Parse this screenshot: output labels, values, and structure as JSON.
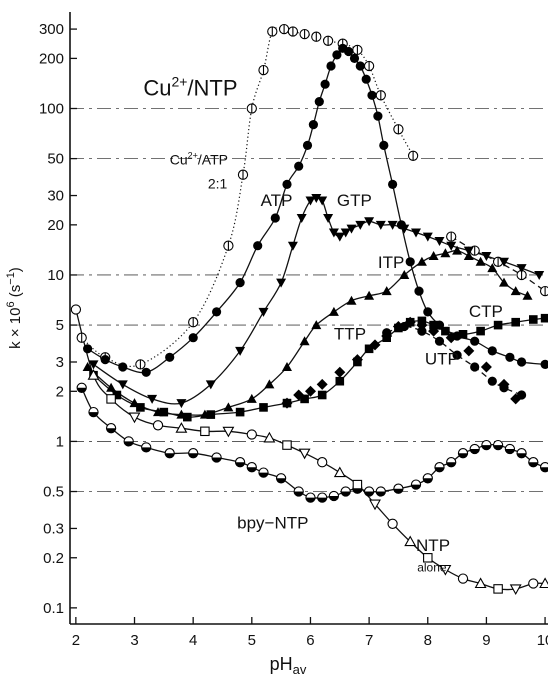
{
  "chart_data": {
    "type": "scatter",
    "xlabel": "pH",
    "xlabel_sub": "av",
    "ylabel": "k × 10",
    "ylabel_exp": "6",
    "ylabel_unit": " (s",
    "ylabel_unit_exp": "−1",
    "ylabel_close": ")",
    "x_scale": "linear",
    "y_scale": "log",
    "xlim": [
      1.9,
      10.05
    ],
    "ylim": [
      0.08,
      380
    ],
    "grid": "dashed horizontal lines at 0.5, 1, 5, 10, 50, 100",
    "x_ticks": [
      2,
      3,
      4,
      5,
      6,
      7,
      8,
      9,
      10
    ],
    "x_tick_labels": [
      "2",
      "3",
      "4",
      "5",
      "6",
      "7",
      "8",
      "9",
      "10"
    ],
    "y_ticks": [
      0.1,
      0.2,
      0.3,
      0.5,
      1,
      2,
      3,
      5,
      10,
      20,
      30,
      50,
      100,
      200,
      300
    ],
    "y_tick_labels": [
      "0.1",
      "0.2",
      "0.3",
      "0.5",
      "1",
      "2",
      "3",
      "5",
      "10",
      "20",
      "30",
      "50",
      "100",
      "200",
      "300"
    ],
    "annotations": [
      {
        "id": "title",
        "text": "Cu",
        "sup": "2+",
        "rest": "/NTP",
        "x": 3.15,
        "y": 120
      },
      {
        "id": "cuatp",
        "text": "Cu",
        "sup": "2+",
        "rest": "/ATP",
        "x": 3.6,
        "y": 46
      },
      {
        "id": "ratio",
        "text": "2:1",
        "x": 4.25,
        "y": 33
      },
      {
        "id": "atp",
        "text": "ATP",
        "x": 5.15,
        "y": 26
      },
      {
        "id": "gtp",
        "text": "GTP",
        "x": 6.45,
        "y": 26
      },
      {
        "id": "itp",
        "text": "ITP",
        "x": 7.15,
        "y": 11
      },
      {
        "id": "ctp",
        "text": "CTP",
        "x": 8.7,
        "y": 5.6
      },
      {
        "id": "ttp",
        "text": "TTP",
        "x": 6.4,
        "y": 4.1
      },
      {
        "id": "utp",
        "text": "UTP",
        "x": 7.95,
        "y": 2.9
      },
      {
        "id": "bpy",
        "text": "bpy−NTP",
        "x": 4.75,
        "y": 0.3
      },
      {
        "id": "ntp",
        "text": "NTP",
        "x": 7.8,
        "y": 0.22
      },
      {
        "id": "alone",
        "text": "alone",
        "x": 7.82,
        "y": 0.165
      }
    ],
    "series": [
      {
        "id": "cu-atp-2to1",
        "marker": "circle-bar-open",
        "line": "dotted",
        "x": [
          2.1,
          2.5,
          3.1,
          4.0,
          4.6,
          4.85,
          5.0,
          5.2,
          5.35,
          5.55,
          5.7,
          5.9,
          6.1,
          6.3,
          6.55,
          6.8,
          7.0,
          7.2,
          7.5,
          7.75
        ],
        "y": [
          4.2,
          3.2,
          2.9,
          5.2,
          15,
          40,
          100,
          170,
          290,
          300,
          290,
          280,
          270,
          255,
          245,
          225,
          180,
          120,
          75,
          52
        ]
      },
      {
        "id": "cu-atp-2to1-tail",
        "marker": "circle-bar-open",
        "line": "dashed",
        "x": [
          8.4,
          8.8,
          9.2,
          9.6,
          10.0
        ],
        "y": [
          17,
          14,
          12,
          10,
          8
        ]
      },
      {
        "id": "atp",
        "marker": "circle-filled",
        "line": "solid",
        "x": [
          2.2,
          2.5,
          2.8,
          3.2,
          3.6,
          4.0,
          4.4,
          4.8,
          5.1,
          5.4,
          5.6,
          5.8,
          5.95,
          6.05,
          6.15,
          6.25,
          6.35,
          6.45,
          6.55,
          6.65,
          6.75,
          6.85,
          6.95,
          7.05,
          7.15,
          7.25,
          7.4,
          7.55,
          7.7,
          7.85,
          8.0,
          8.2,
          8.5,
          8.8,
          9.1,
          9.4,
          9.6,
          10.0
        ],
        "y": [
          3.6,
          3.1,
          2.8,
          2.6,
          3.2,
          4.2,
          6,
          9,
          15,
          22,
          35,
          45,
          60,
          80,
          110,
          140,
          180,
          210,
          230,
          220,
          200,
          180,
          150,
          120,
          90,
          60,
          35,
          20,
          12,
          8,
          6,
          5,
          4.3,
          4,
          3.5,
          3.2,
          3.0,
          2.9
        ]
      },
      {
        "id": "gtp",
        "marker": "triangle-down-filled",
        "line": "solid",
        "x": [
          2.3,
          2.8,
          3.3,
          3.8,
          4.3,
          4.8,
          5.2,
          5.5,
          5.7,
          5.85,
          6.0,
          6.1,
          6.2,
          6.3,
          6.4,
          6.5,
          6.6,
          6.7,
          6.85,
          7.0,
          7.2,
          7.4,
          7.6,
          7.8,
          8.0,
          8.2,
          8.4,
          8.7,
          9.0,
          9.3,
          9.6,
          9.9
        ],
        "y": [
          2.9,
          2.2,
          1.8,
          1.7,
          2.2,
          3.5,
          6,
          9,
          15,
          22,
          28,
          29,
          28,
          22,
          18,
          17,
          18,
          19,
          20,
          21,
          20,
          20,
          19,
          18,
          17,
          16,
          15,
          14,
          13,
          12,
          11,
          10
        ]
      },
      {
        "id": "itp",
        "marker": "triangle-up-filled",
        "line": "solid",
        "x": [
          2.2,
          2.6,
          3.0,
          3.4,
          3.8,
          4.2,
          4.6,
          5.0,
          5.3,
          5.6,
          5.9,
          6.1,
          6.4,
          6.7,
          7.0,
          7.3,
          7.6,
          7.9,
          8.1,
          8.3,
          8.5,
          8.7,
          8.9,
          9.1,
          9.3,
          9.5,
          9.7
        ],
        "y": [
          2.8,
          2.1,
          1.7,
          1.5,
          1.45,
          1.45,
          1.6,
          1.8,
          2.2,
          2.8,
          4,
          5,
          6,
          7,
          7.5,
          8,
          10,
          12,
          13,
          13.5,
          14,
          13,
          12,
          11,
          9,
          8,
          7.5
        ]
      },
      {
        "id": "ctp",
        "marker": "square-filled",
        "line": "solid",
        "x": [
          2.3,
          2.7,
          3.1,
          3.5,
          3.9,
          4.3,
          4.8,
          5.2,
          5.6,
          5.9,
          6.2,
          6.5,
          6.8,
          7.0,
          7.3,
          7.5,
          7.7,
          7.9,
          8.1,
          8.3,
          8.6,
          8.9,
          9.2,
          9.5,
          9.8,
          10.0
        ],
        "y": [
          2.5,
          1.9,
          1.6,
          1.5,
          1.4,
          1.45,
          1.5,
          1.6,
          1.7,
          1.8,
          1.9,
          2.3,
          3,
          3.6,
          4.2,
          4.8,
          5.2,
          5.3,
          5.0,
          4.6,
          4.4,
          4.6,
          5.0,
          5.2,
          5.4,
          5.5
        ]
      },
      {
        "id": "ttp",
        "marker": "diamond-filled",
        "line": "none",
        "x": [
          5.6,
          5.8,
          6.0,
          6.2,
          6.5,
          6.8,
          7.1,
          7.3,
          7.5,
          7.7,
          7.9,
          8.1,
          8.4,
          8.7,
          9.0,
          9.3,
          9.5
        ],
        "y": [
          1.7,
          1.9,
          2.0,
          2.2,
          2.6,
          3.1,
          3.8,
          4.3,
          4.9,
          5.2,
          5.0,
          4.6,
          4.2,
          3.5,
          2.8,
          2.2,
          1.8
        ]
      },
      {
        "id": "utp",
        "marker": "circle-filled",
        "line": "dashed",
        "x": [
          7.3,
          7.6,
          7.9,
          8.2,
          8.5,
          8.8,
          9.1,
          9.3,
          9.6
        ],
        "y": [
          4.5,
          4.9,
          4.6,
          4.0,
          3.3,
          2.8,
          2.3,
          2.1,
          1.9
        ]
      },
      {
        "id": "bpy-ntp",
        "marker": "circle-half",
        "line": "solid",
        "x": [
          2.1,
          2.3,
          2.6,
          2.9,
          3.2,
          3.6,
          4.0,
          4.4,
          4.8,
          5.0,
          5.2,
          5.5,
          5.8,
          6.0,
          6.2,
          6.4,
          6.6,
          6.8,
          7.0,
          7.2,
          7.5,
          7.8,
          8.0,
          8.2,
          8.4,
          8.6,
          8.8,
          9.0,
          9.2,
          9.4,
          9.6,
          9.8,
          10.0
        ],
        "y": [
          2.1,
          1.5,
          1.2,
          1.0,
          0.92,
          0.85,
          0.85,
          0.8,
          0.75,
          0.7,
          0.65,
          0.6,
          0.5,
          0.46,
          0.46,
          0.47,
          0.5,
          0.52,
          0.5,
          0.5,
          0.52,
          0.55,
          0.6,
          0.7,
          0.75,
          0.85,
          0.9,
          0.95,
          0.95,
          0.9,
          0.85,
          0.75,
          0.7
        ]
      },
      {
        "id": "ntp-alone",
        "marker": "mixed-open",
        "line": "solid",
        "x": [
          2.0,
          2.3,
          2.6,
          3.0,
          3.4,
          3.8,
          4.2,
          4.6,
          5.0,
          5.3,
          5.6,
          5.9,
          6.2,
          6.5,
          6.8,
          7.1,
          7.4,
          7.7,
          8.0,
          8.3,
          8.6,
          8.9,
          9.2,
          9.5,
          9.8,
          10.0
        ],
        "y": [
          6.2,
          2.5,
          1.8,
          1.4,
          1.25,
          1.2,
          1.15,
          1.15,
          1.1,
          1.05,
          0.95,
          0.85,
          0.75,
          0.65,
          0.55,
          0.42,
          0.32,
          0.25,
          0.2,
          0.17,
          0.15,
          0.14,
          0.13,
          0.13,
          0.14,
          0.14
        ]
      }
    ]
  }
}
